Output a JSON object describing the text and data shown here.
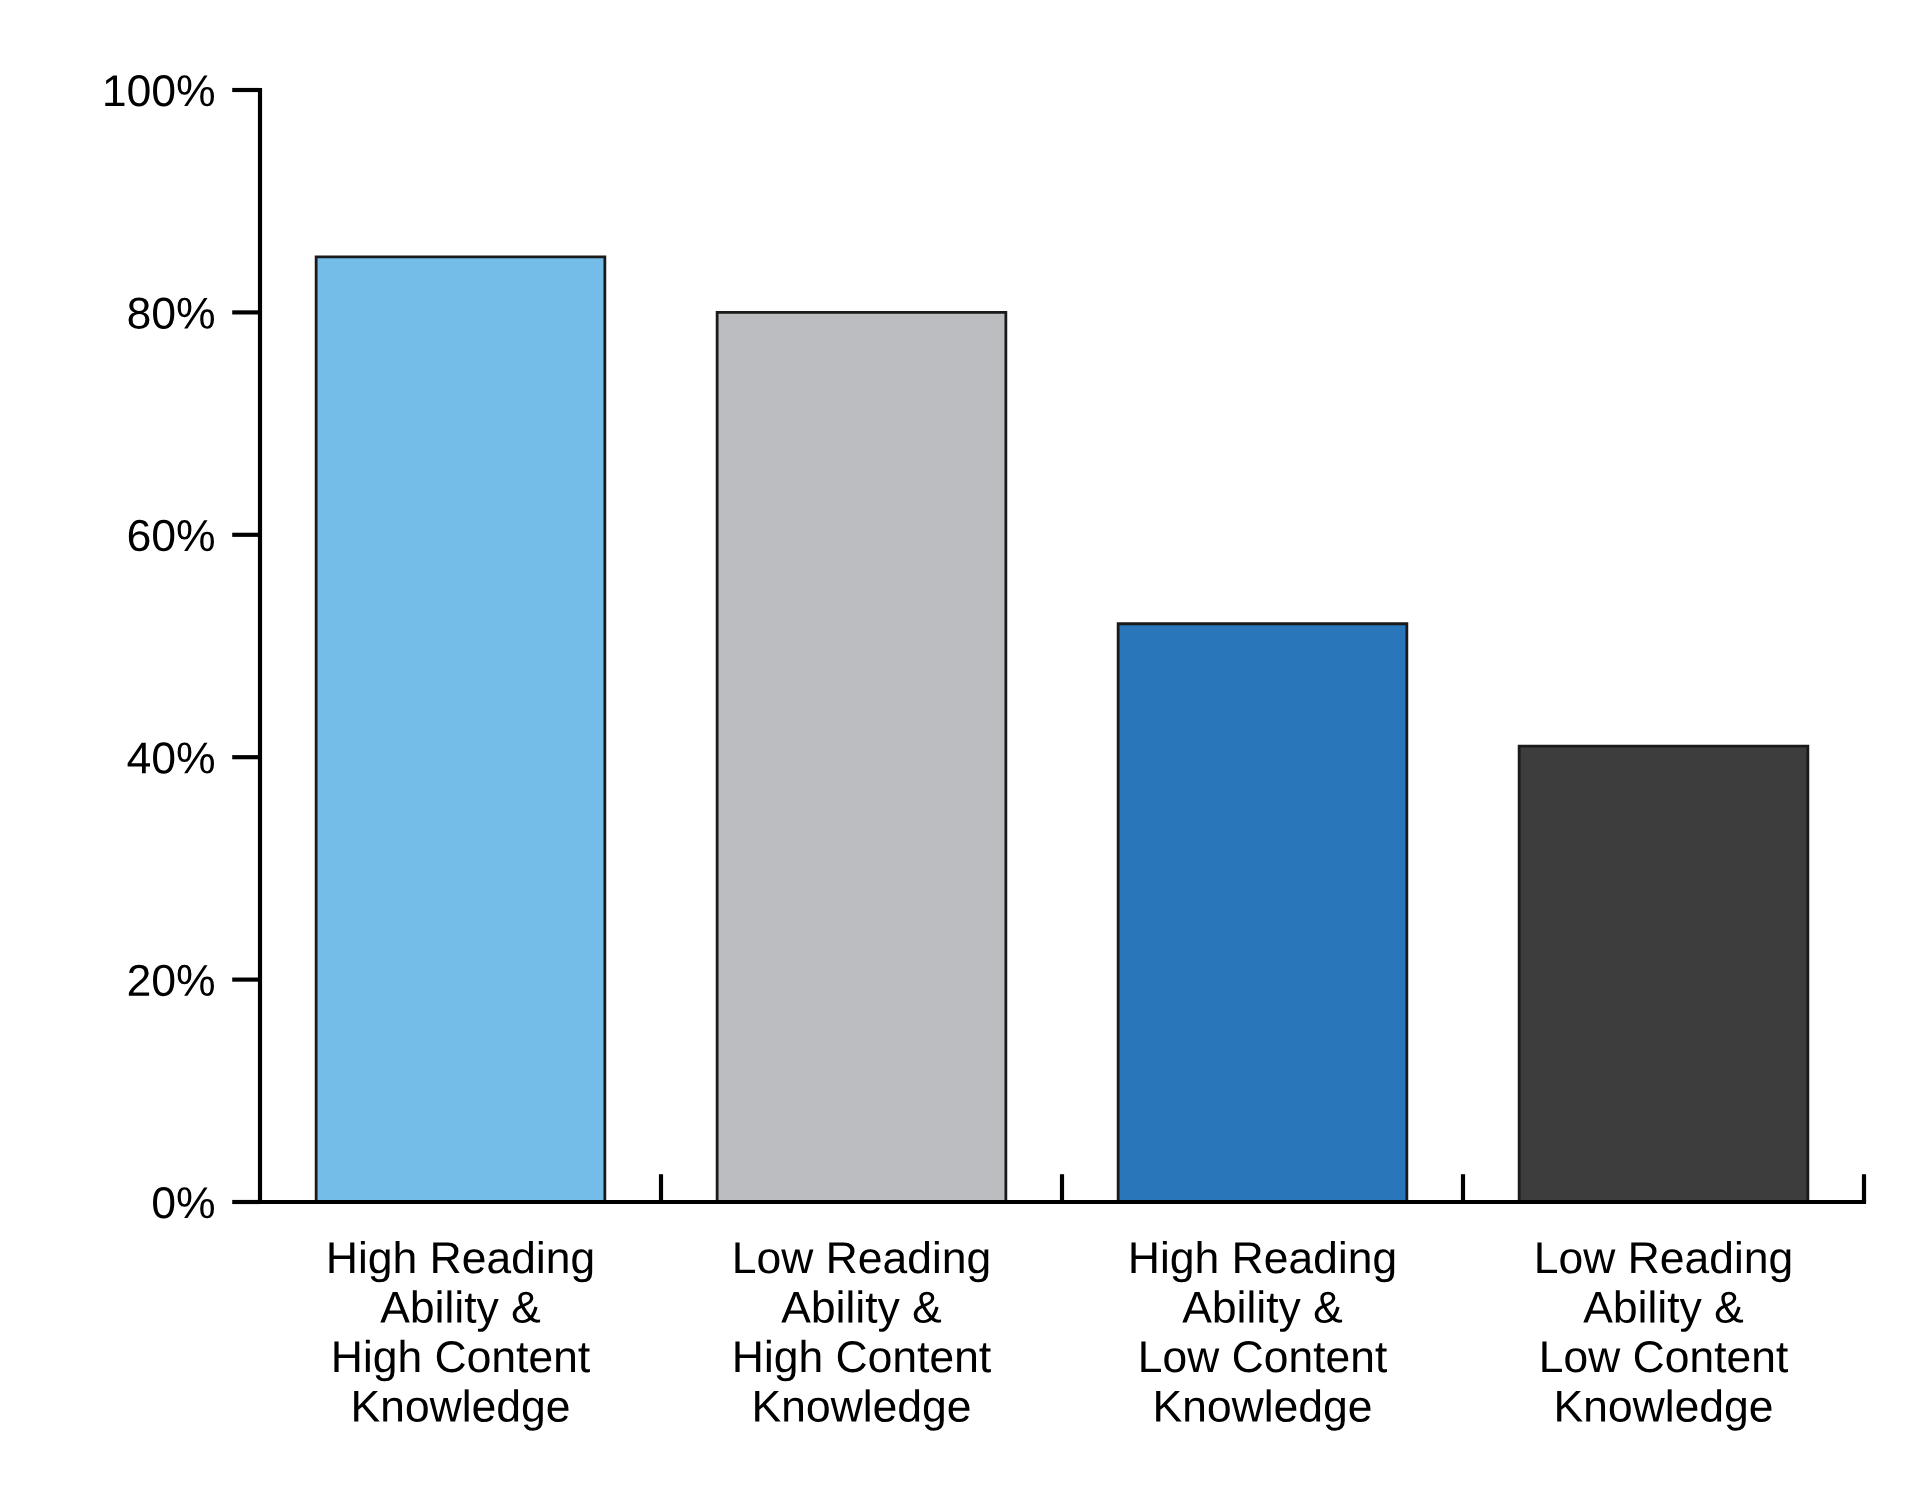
{
  "chart_data": {
    "type": "bar",
    "categories": [
      "High Reading\nAbility &\nHigh Content\nKnowledge",
      "Low Reading\nAbility &\nHigh Content\nKnowledge",
      "High Reading\nAbility &\nLow Content\nKnowledge",
      "Low Reading\nAbility &\nLow Content\nKnowledge"
    ],
    "values": [
      85,
      80,
      52,
      41
    ],
    "colors": [
      "#74bde8",
      "#bcbdc0",
      "#2a76bb",
      "#3d3d3d"
    ],
    "ylim": [
      0,
      100
    ],
    "yticks": [
      {
        "value": 0,
        "label": "0%"
      },
      {
        "value": 20,
        "label": "20%"
      },
      {
        "value": 40,
        "label": "40%"
      },
      {
        "value": 60,
        "label": "60%"
      },
      {
        "value": 80,
        "label": "80%"
      },
      {
        "value": 100,
        "label": "100%"
      }
    ],
    "grid": false
  }
}
